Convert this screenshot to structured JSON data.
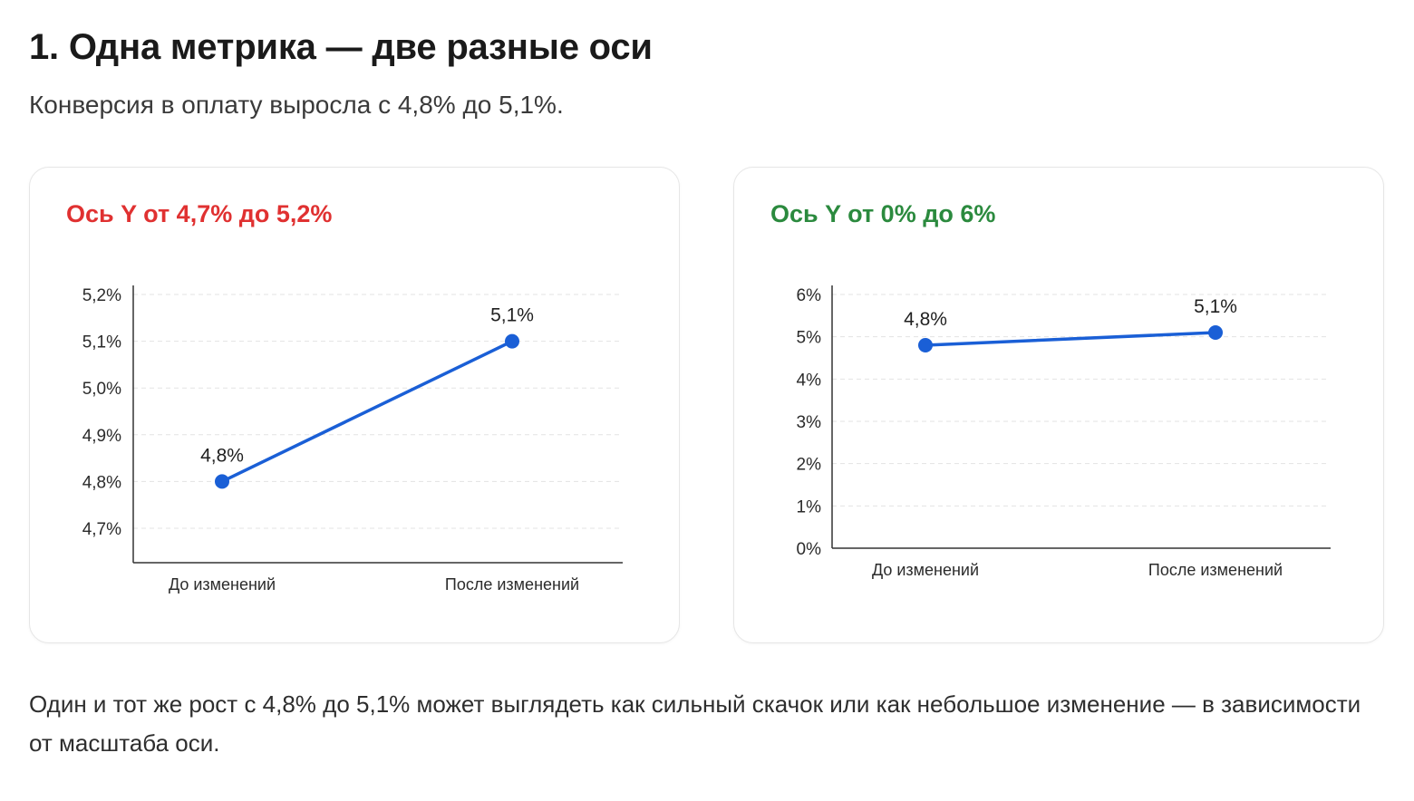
{
  "page": {
    "title": "1. Одна метрика — две разные оси",
    "subtitle": "Конверсия в оплату выросла с 4,8% до 5,1%.",
    "footer": "Один и тот же рост с 4,8% до 5,1% может выглядеть как сильный скачок или как небольшое изменение — в зависимости от масштаба оси."
  },
  "colors": {
    "left_title": "#e03131",
    "right_title": "#2b8a3e",
    "series": "#1a5fd6",
    "grid": "#e3e3e3",
    "axis": "#333333"
  },
  "chart_data": [
    {
      "type": "line",
      "title": "Ось Y от 4,7% до 5,2%",
      "categories": [
        "До изменений",
        "После изменений"
      ],
      "series": [
        {
          "values": [
            4.8,
            5.1
          ]
        }
      ],
      "data_labels": [
        "4,8%",
        "5,1%"
      ],
      "ylim": [
        4.7,
        5.2
      ],
      "yticks": [
        4.7,
        4.8,
        4.9,
        5.0,
        5.1,
        5.2
      ],
      "ytick_labels": [
        "4,7%",
        "4,8%",
        "4,9%",
        "5,0%",
        "5,1%",
        "5,2%"
      ],
      "grid": true,
      "xlabel": "",
      "ylabel": ""
    },
    {
      "type": "line",
      "title": "Ось Y от 0% до 6%",
      "categories": [
        "До изменений",
        "После изменений"
      ],
      "series": [
        {
          "values": [
            4.8,
            5.1
          ]
        }
      ],
      "data_labels": [
        "4,8%",
        "5,1%"
      ],
      "ylim": [
        0,
        6
      ],
      "yticks": [
        0,
        1,
        2,
        3,
        4,
        5,
        6
      ],
      "ytick_labels": [
        "0%",
        "1%",
        "2%",
        "3%",
        "4%",
        "5%",
        "6%"
      ],
      "grid": true,
      "xlabel": "",
      "ylabel": ""
    }
  ]
}
